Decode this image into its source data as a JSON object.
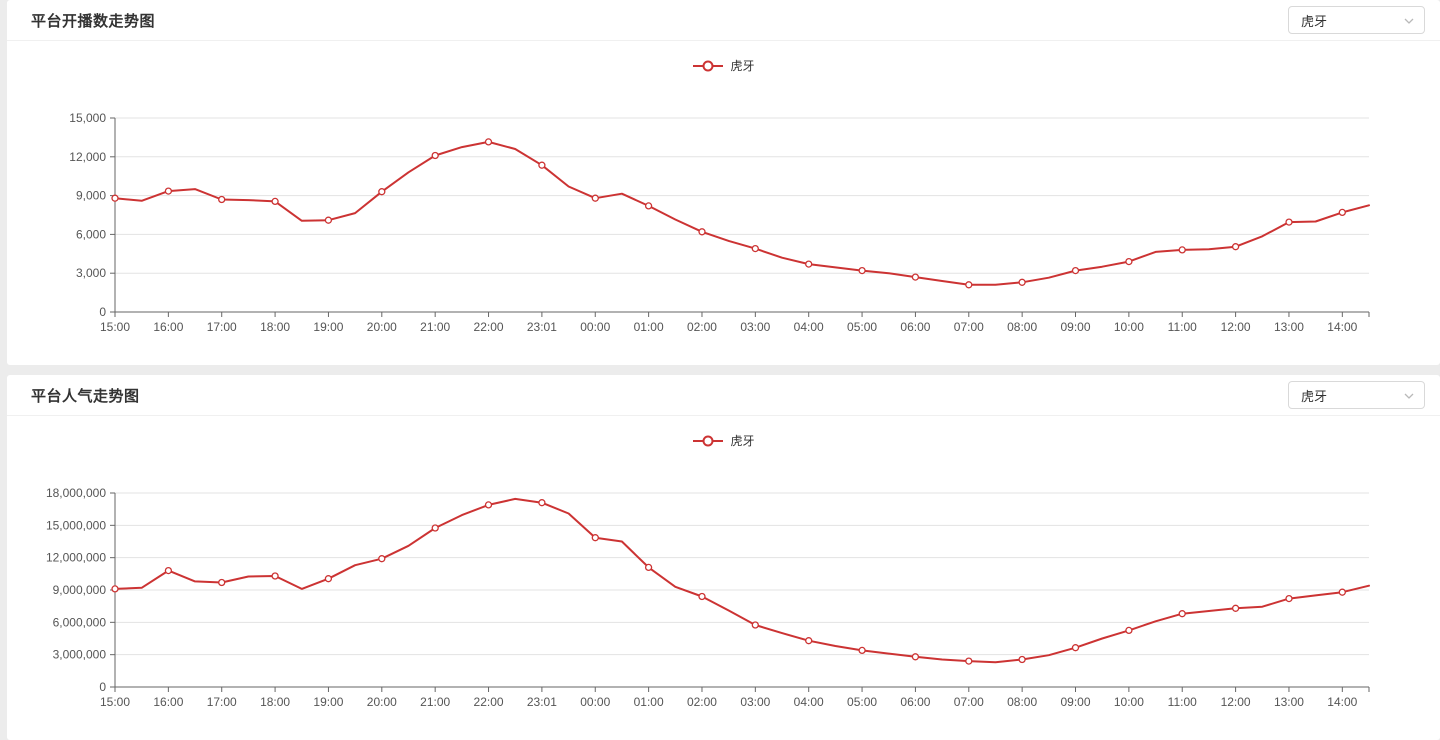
{
  "page": {
    "background_color": "#ececec",
    "card_color": "#ffffff"
  },
  "charts": [
    {
      "title": "平台开播数走势图",
      "select_value": "虎牙",
      "legend": "虎牙",
      "chart_data": {
        "type": "line",
        "series_name": "虎牙",
        "color": "#cc3333",
        "grid": true,
        "legend_position": "top-center",
        "marker": "hollow-circle-on-hour-points",
        "ylim": [
          0,
          15000
        ],
        "y_ticks": [
          0,
          3000,
          6000,
          9000,
          12000,
          15000
        ],
        "y_tick_labels": [
          "0",
          "3,000",
          "6,000",
          "9,000",
          "12,000",
          "15,000"
        ],
        "x_tick_labels": [
          "15:00",
          "16:00",
          "17:00",
          "18:00",
          "19:00",
          "20:00",
          "21:00",
          "22:00",
          "23:01",
          "00:00",
          "01:00",
          "02:00",
          "03:00",
          "04:00",
          "05:00",
          "06:00",
          "07:00",
          "08:00",
          "09:00",
          "10:00",
          "11:00",
          "12:00",
          "13:00",
          "14:00"
        ],
        "x": [
          "15:00",
          "15:30",
          "16:00",
          "16:30",
          "17:00",
          "17:30",
          "18:00",
          "18:30",
          "19:00",
          "19:30",
          "20:00",
          "20:30",
          "21:00",
          "21:30",
          "22:00",
          "22:30",
          "23:01",
          "23:30",
          "00:00",
          "00:30",
          "01:00",
          "01:30",
          "02:00",
          "02:30",
          "03:00",
          "03:30",
          "04:00",
          "04:30",
          "05:00",
          "05:30",
          "06:00",
          "06:30",
          "07:00",
          "07:30",
          "08:00",
          "08:30",
          "09:00",
          "09:30",
          "10:00",
          "10:30",
          "11:00",
          "11:30",
          "12:00",
          "12:30",
          "13:00",
          "13:30",
          "14:00",
          "14:30"
        ],
        "values": [
          8800,
          8600,
          9350,
          9500,
          8700,
          8650,
          8550,
          7050,
          7100,
          7650,
          9300,
          10800,
          12100,
          12750,
          13150,
          12600,
          11350,
          9700,
          8800,
          9150,
          8200,
          7150,
          6200,
          5500,
          4900,
          4200,
          3700,
          3450,
          3200,
          3000,
          2700,
          2400,
          2100,
          2100,
          2300,
          2650,
          3200,
          3500,
          3900,
          4650,
          4800,
          4850,
          5050,
          5850,
          6950,
          7000,
          7700,
          8250
        ]
      }
    },
    {
      "title": "平台人气走势图",
      "select_value": "虎牙",
      "legend": "虎牙",
      "chart_data": {
        "type": "line",
        "series_name": "虎牙",
        "color": "#cc3333",
        "grid": true,
        "legend_position": "top-center",
        "marker": "hollow-circle-on-hour-points",
        "ylim": [
          0,
          18000000
        ],
        "y_ticks": [
          0,
          3000000,
          6000000,
          9000000,
          12000000,
          15000000,
          18000000
        ],
        "y_tick_labels": [
          "0",
          "3,000,000",
          "6,000,000",
          "9,000,000",
          "12,000,000",
          "15,000,000",
          "18,000,000"
        ],
        "x_tick_labels": [
          "15:00",
          "16:00",
          "17:00",
          "18:00",
          "19:00",
          "20:00",
          "21:00",
          "22:00",
          "23:01",
          "00:00",
          "01:00",
          "02:00",
          "03:00",
          "04:00",
          "05:00",
          "06:00",
          "07:00",
          "08:00",
          "09:00",
          "10:00",
          "11:00",
          "12:00",
          "13:00",
          "14:00"
        ],
        "x": [
          "15:00",
          "15:30",
          "16:00",
          "16:30",
          "17:00",
          "17:30",
          "18:00",
          "18:30",
          "19:00",
          "19:30",
          "20:00",
          "20:30",
          "21:00",
          "21:30",
          "22:00",
          "22:30",
          "23:01",
          "23:30",
          "00:00",
          "00:30",
          "01:00",
          "01:30",
          "02:00",
          "02:30",
          "03:00",
          "03:30",
          "04:00",
          "04:30",
          "05:00",
          "05:30",
          "06:00",
          "06:30",
          "07:00",
          "07:30",
          "08:00",
          "08:30",
          "09:00",
          "09:30",
          "10:00",
          "10:30",
          "11:00",
          "11:30",
          "12:00",
          "12:30",
          "13:00",
          "13:30",
          "14:00",
          "14:30"
        ],
        "values": [
          9100000,
          9200000,
          10800000,
          9800000,
          9700000,
          10250000,
          10300000,
          9100000,
          10050000,
          11300000,
          11900000,
          13100000,
          14750000,
          15950000,
          16900000,
          17450000,
          17100000,
          16100000,
          13850000,
          13500000,
          11100000,
          9300000,
          8400000,
          7100000,
          5750000,
          5000000,
          4300000,
          3800000,
          3400000,
          3100000,
          2800000,
          2550000,
          2400000,
          2300000,
          2550000,
          2950000,
          3650000,
          4500000,
          5250000,
          6100000,
          6800000,
          7050000,
          7300000,
          7450000,
          8200000,
          8500000,
          8800000,
          9400000
        ]
      }
    }
  ]
}
